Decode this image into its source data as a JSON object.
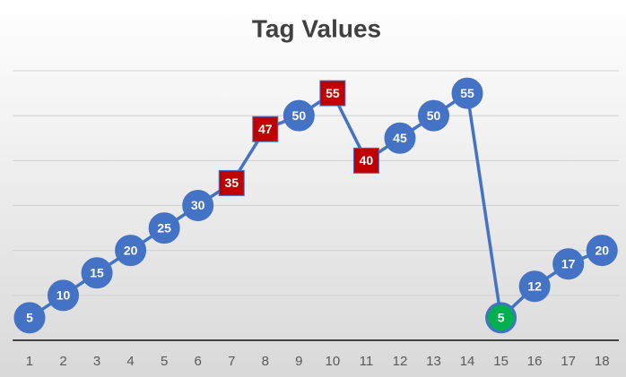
{
  "chart_data": {
    "type": "line",
    "title": "Tag Values",
    "categories": [
      "1",
      "2",
      "3",
      "4",
      "5",
      "6",
      "7",
      "8",
      "9",
      "10",
      "11",
      "12",
      "13",
      "14",
      "15",
      "16",
      "17",
      "18"
    ],
    "series": [
      {
        "name": "Tag Values",
        "color": "#4472c4",
        "values": [
          5,
          10,
          15,
          20,
          25,
          30,
          35,
          47,
          50,
          55,
          40,
          45,
          50,
          55,
          5,
          12,
          17,
          20
        ],
        "marker_shapes": [
          "circle",
          "circle",
          "circle",
          "circle",
          "circle",
          "circle",
          "square",
          "square",
          "circle",
          "square",
          "square",
          "circle",
          "circle",
          "circle",
          "circle",
          "circle",
          "circle",
          "circle"
        ],
        "marker_colors": [
          "#4472c4",
          "#4472c4",
          "#4472c4",
          "#4472c4",
          "#4472c4",
          "#4472c4",
          "#c00000",
          "#c00000",
          "#4472c4",
          "#c00000",
          "#c00000",
          "#4472c4",
          "#4472c4",
          "#4472c4",
          "#00b050",
          "#4472c4",
          "#4472c4",
          "#4472c4"
        ]
      }
    ],
    "ylim": [
      0,
      60
    ],
    "yticks": [
      0,
      10,
      20,
      30,
      40,
      50,
      60
    ],
    "grid": true,
    "data_labels": true
  }
}
